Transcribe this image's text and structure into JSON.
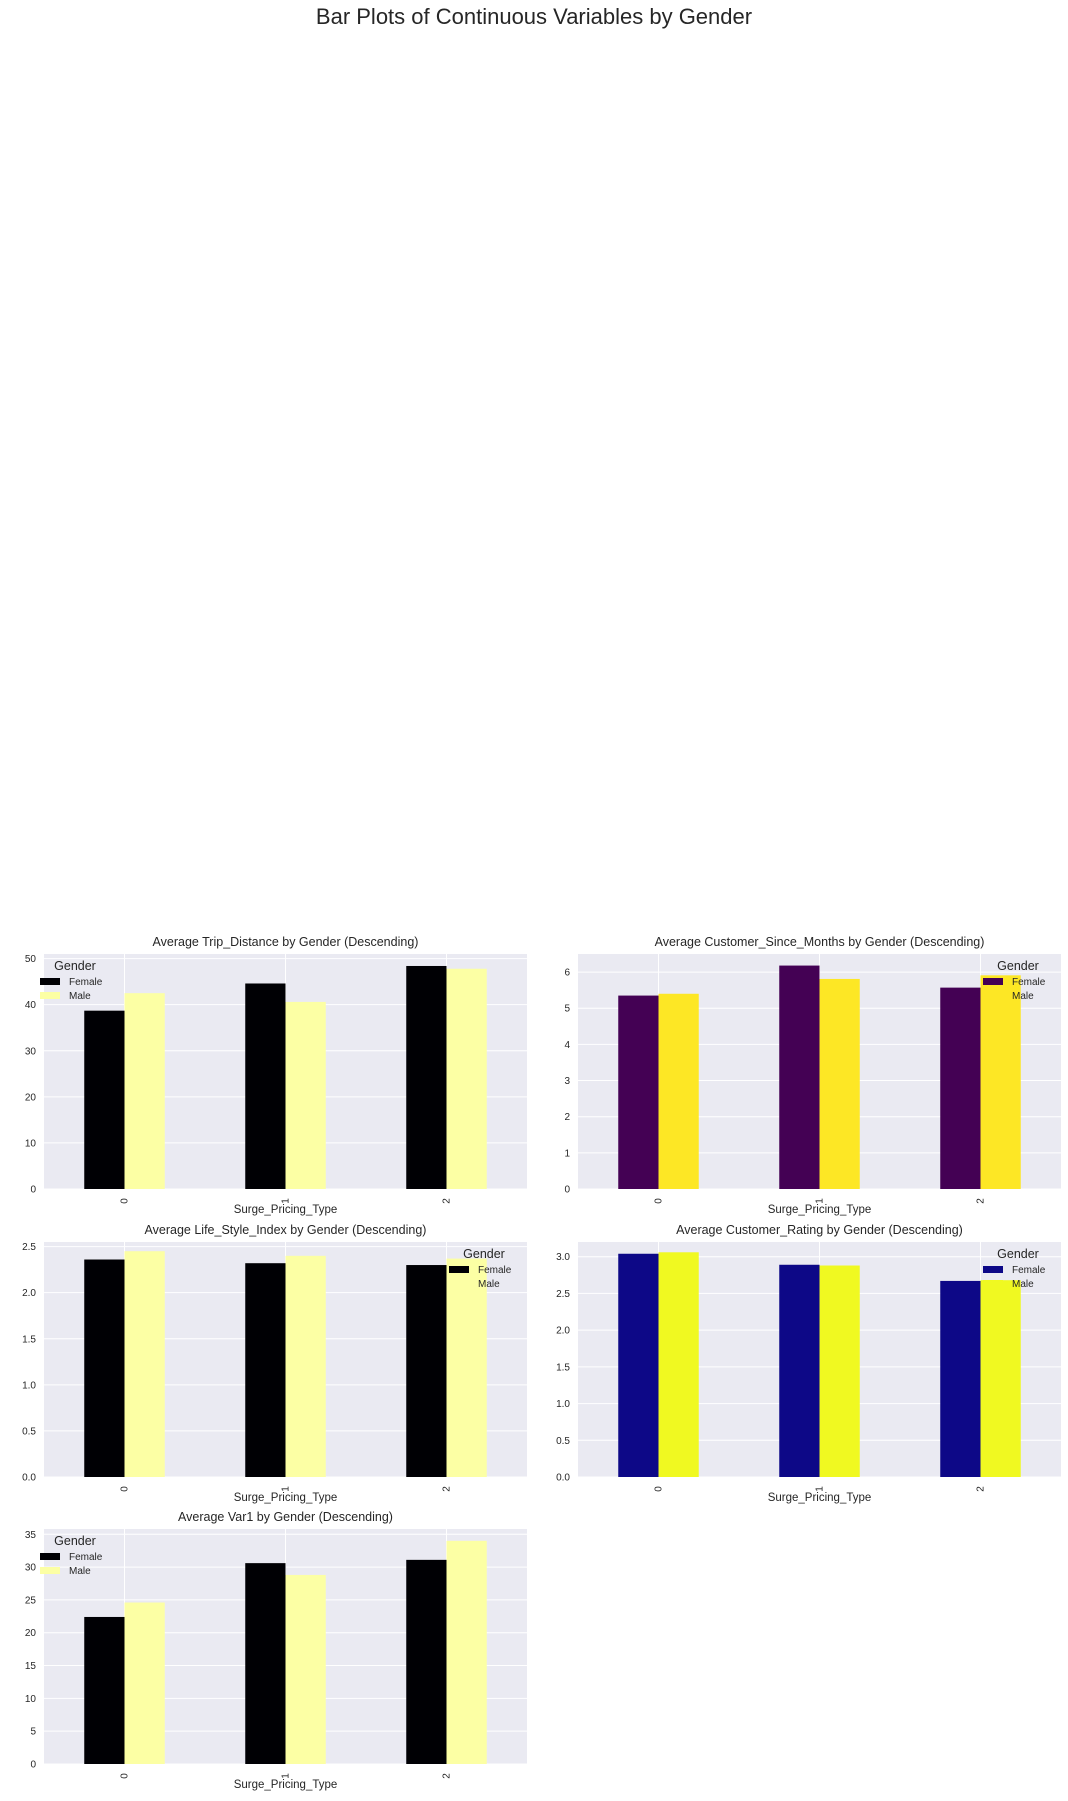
{
  "figure_title": "Bar Plots of Continuous Variables by Gender",
  "chart_data": [
    {
      "type": "bar",
      "title": "Average Trip_Distance by Gender (Descending)",
      "xlabel": "Surge_Pricing_Type",
      "ylabel": "",
      "categories": [
        "0",
        "1",
        "2"
      ],
      "series": [
        {
          "name": "Female",
          "values": [
            38.7,
            44.6,
            48.4
          ],
          "color": "#000004"
        },
        {
          "name": "Male",
          "values": [
            42.5,
            40.6,
            47.8
          ],
          "color": "#fcffa4"
        }
      ],
      "ylim": [
        0,
        51
      ],
      "yticks": [
        "0",
        "10",
        "20",
        "30",
        "40",
        "50"
      ],
      "legend": {
        "title": "Gender",
        "position": "upper-left"
      },
      "grid": true
    },
    {
      "type": "bar",
      "title": "Average Customer_Since_Months by Gender (Descending)",
      "xlabel": "Surge_Pricing_Type",
      "ylabel": "",
      "categories": [
        "0",
        "1",
        "2"
      ],
      "series": [
        {
          "name": "Female",
          "values": [
            5.35,
            6.18,
            5.57
          ],
          "color": "#440154"
        },
        {
          "name": "Male",
          "values": [
            5.4,
            5.81,
            5.91
          ],
          "color": "#fde725"
        }
      ],
      "ylim": [
        0,
        6.5
      ],
      "yticks": [
        "0",
        "1",
        "2",
        "3",
        "4",
        "5",
        "6"
      ],
      "legend": {
        "title": "Gender",
        "position": "upper-right"
      },
      "grid": true
    },
    {
      "type": "bar",
      "title": "Average Life_Style_Index by Gender (Descending)",
      "xlabel": "Surge_Pricing_Type",
      "ylabel": "",
      "categories": [
        "0",
        "1",
        "2"
      ],
      "series": [
        {
          "name": "Female",
          "values": [
            2.36,
            2.32,
            2.3
          ],
          "color": "#000004"
        },
        {
          "name": "Male",
          "values": [
            2.45,
            2.4,
            2.37
          ],
          "color": "#fcffa4"
        }
      ],
      "ylim": [
        0,
        2.55
      ],
      "yticks": [
        "0.0",
        "0.5",
        "1.0",
        "1.5",
        "2.0",
        "2.5"
      ],
      "legend": {
        "title": "Gender",
        "position": "upper-right"
      },
      "grid": true
    },
    {
      "type": "bar",
      "title": "Average Customer_Rating by Gender (Descending)",
      "xlabel": "Surge_Pricing_Type",
      "ylabel": "",
      "categories": [
        "0",
        "1",
        "2"
      ],
      "series": [
        {
          "name": "Female",
          "values": [
            3.04,
            2.89,
            2.67
          ],
          "color": "#0d0887"
        },
        {
          "name": "Male",
          "values": [
            3.06,
            2.88,
            2.68
          ],
          "color": "#f0f921"
        }
      ],
      "ylim": [
        0,
        3.2
      ],
      "yticks": [
        "0.0",
        "0.5",
        "1.0",
        "1.5",
        "2.0",
        "2.5",
        "3.0"
      ],
      "legend": {
        "title": "Gender",
        "position": "upper-right"
      },
      "grid": true
    },
    {
      "type": "bar",
      "title": "Average Var1 by Gender (Descending)",
      "xlabel": "Surge_Pricing_Type",
      "ylabel": "",
      "categories": [
        "0",
        "1",
        "2"
      ],
      "series": [
        {
          "name": "Female",
          "values": [
            22.4,
            30.6,
            31.1
          ],
          "color": "#000004"
        },
        {
          "name": "Male",
          "values": [
            24.6,
            28.8,
            34.0
          ],
          "color": "#fcffa4"
        }
      ],
      "ylim": [
        0,
        35.8
      ],
      "yticks": [
        "0",
        "5",
        "10",
        "15",
        "20",
        "25",
        "30",
        "35"
      ],
      "legend": {
        "title": "Gender",
        "position": "upper-left"
      },
      "grid": true
    }
  ]
}
